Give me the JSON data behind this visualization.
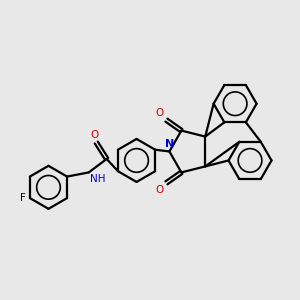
{
  "bg_color": "#e8e8e8",
  "bond_color": "#000000",
  "N_color": "#0000cc",
  "O_color": "#cc0000",
  "line_width": 1.6,
  "figsize": [
    3.0,
    3.0
  ],
  "dpi": 100,
  "xlim": [
    0,
    10
  ],
  "ylim": [
    0,
    10
  ]
}
